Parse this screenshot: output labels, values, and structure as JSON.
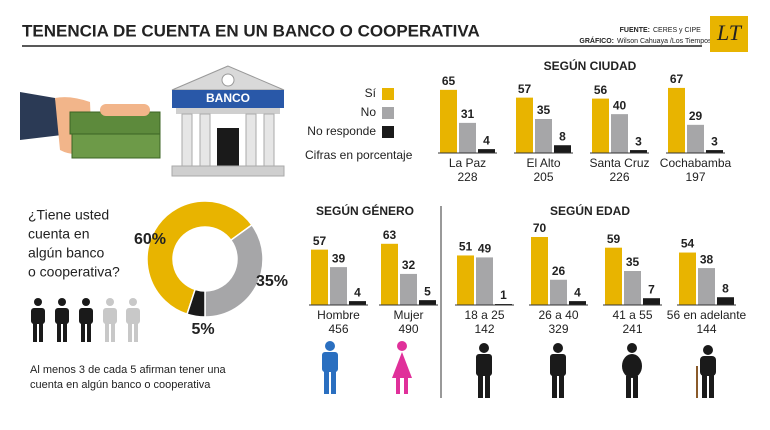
{
  "title": "TENENCIA DE CUENTA EN UN BANCO O COOPERATIVA",
  "source": {
    "fuente_label": "FUENTE:",
    "fuente": "CERES y CIPE",
    "grafico_label": "GRÁFICO:",
    "grafico": "Wilson Cahuaya /Los Tiempos"
  },
  "logo": "LT",
  "bank_sign": "BANCO",
  "note": "Cifras en porcentaje",
  "question": [
    "¿Tiene usted",
    "cuenta en",
    "algún banco",
    "o cooperativa?"
  ],
  "footnote": [
    "Al menos 3 de cada 5 afirman tener una",
    "cuenta en algún banco o cooperativa"
  ],
  "chart_data": [
    {
      "type": "donut",
      "values": [
        60,
        35,
        5
      ],
      "value_labels": [
        "60%",
        "35%",
        "5%"
      ],
      "colors": [
        "#e8b400",
        "#a6a6a8",
        "#1a1a1a"
      ]
    },
    {
      "type": "bar",
      "title": "SEGÚN CIUDAD",
      "categories": [
        "La Paz",
        "El Alto",
        "Santa Cruz",
        "Cochabamba"
      ],
      "n": [
        228,
        205,
        226,
        197
      ],
      "ylim": [
        0,
        70
      ],
      "series": [
        {
          "name": "Sí",
          "color": "#e8b400",
          "values": [
            65,
            57,
            56,
            67
          ]
        },
        {
          "name": "No",
          "color": "#a6a6a8",
          "values": [
            31,
            35,
            40,
            29
          ]
        },
        {
          "name": "No responde",
          "color": "#1a1a1a",
          "values": [
            4,
            8,
            3,
            3
          ]
        }
      ]
    },
    {
      "type": "bar",
      "title": "SEGÚN GÉNERO",
      "categories": [
        "Hombre",
        "Mujer"
      ],
      "n": [
        456,
        490
      ],
      "ylim": [
        0,
        70
      ],
      "series": [
        {
          "color": "#e8b400",
          "values": [
            57,
            63
          ]
        },
        {
          "color": "#a6a6a8",
          "values": [
            39,
            32
          ]
        },
        {
          "color": "#1a1a1a",
          "values": [
            4,
            5
          ]
        }
      ]
    },
    {
      "type": "bar",
      "title": "SEGÚN EDAD",
      "categories": [
        "18 a 25",
        "26 a 40",
        "41 a 55",
        "56 en adelante"
      ],
      "n": [
        142,
        329,
        241,
        144
      ],
      "ylim": [
        0,
        70
      ],
      "series": [
        {
          "color": "#e8b400",
          "values": [
            51,
            70,
            59,
            54
          ]
        },
        {
          "color": "#a6a6a8",
          "values": [
            49,
            26,
            35,
            38
          ]
        },
        {
          "color": "#1a1a1a",
          "values": [
            1,
            4,
            7,
            8
          ]
        }
      ]
    }
  ]
}
